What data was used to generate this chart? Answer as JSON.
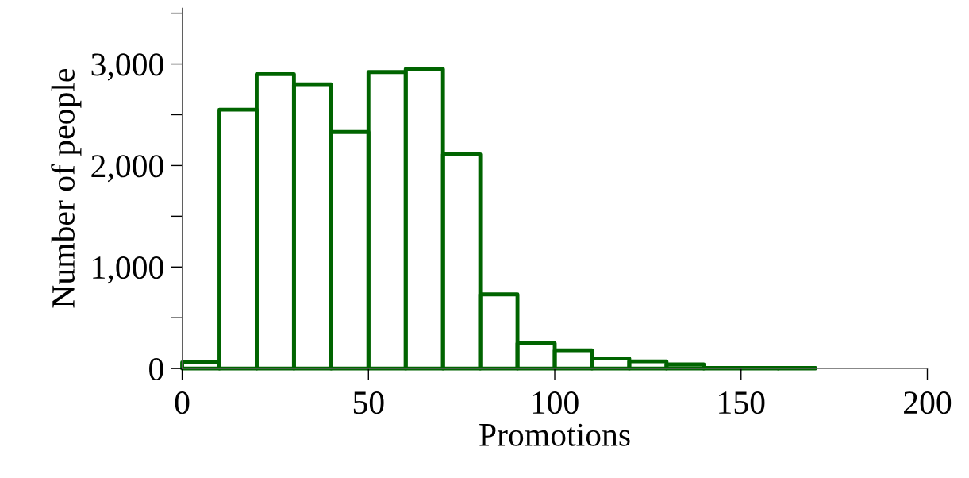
{
  "chart_data": {
    "type": "histogram",
    "xlabel": "Promotions",
    "ylabel": "Number of people",
    "bins": [
      0,
      10,
      20,
      30,
      40,
      50,
      60,
      70,
      80,
      90,
      100,
      110,
      120,
      130,
      140,
      150,
      160,
      170
    ],
    "values": [
      60,
      2550,
      2900,
      2800,
      2330,
      2920,
      2950,
      2110,
      730,
      250,
      180,
      100,
      70,
      40,
      5,
      5,
      5
    ],
    "color": "#006400",
    "xlim": [
      0,
      200
    ],
    "xticks": [
      0,
      50,
      100,
      150,
      200
    ],
    "ylim": [
      0,
      3550
    ],
    "yticks": [
      0,
      {
        "value": 500,
        "label": null
      },
      {
        "value": 1000,
        "label": "1,000"
      },
      {
        "value": 1500,
        "label": null
      },
      {
        "value": 2000,
        "label": "2,000"
      },
      {
        "value": 2500,
        "label": null
      },
      {
        "value": 3000,
        "label": "3,000"
      },
      {
        "value": 3500,
        "label": null
      }
    ],
    "grid": false
  }
}
